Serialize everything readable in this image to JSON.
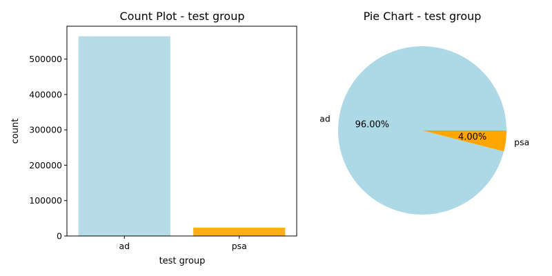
{
  "chart_data": [
    {
      "type": "bar",
      "title": "Count Plot - test group",
      "xlabel": "test group",
      "ylabel": "count",
      "categories": [
        "ad",
        "psa"
      ],
      "values": [
        564577,
        23524
      ],
      "ylim": [
        0,
        593000
      ],
      "yticks": [
        0,
        100000,
        200000,
        300000,
        400000,
        500000
      ],
      "colors": [
        "#add8e6",
        "#ffa500"
      ],
      "bar_alpha": 0.9,
      "grid": false
    },
    {
      "type": "pie",
      "title": "Pie Chart - test group",
      "labels": [
        "ad",
        "psa"
      ],
      "values": [
        96.0,
        4.0
      ],
      "pct_labels": [
        "96.00%",
        "4.00%"
      ],
      "colors": [
        "#add8e6",
        "#ffa500"
      ]
    }
  ]
}
